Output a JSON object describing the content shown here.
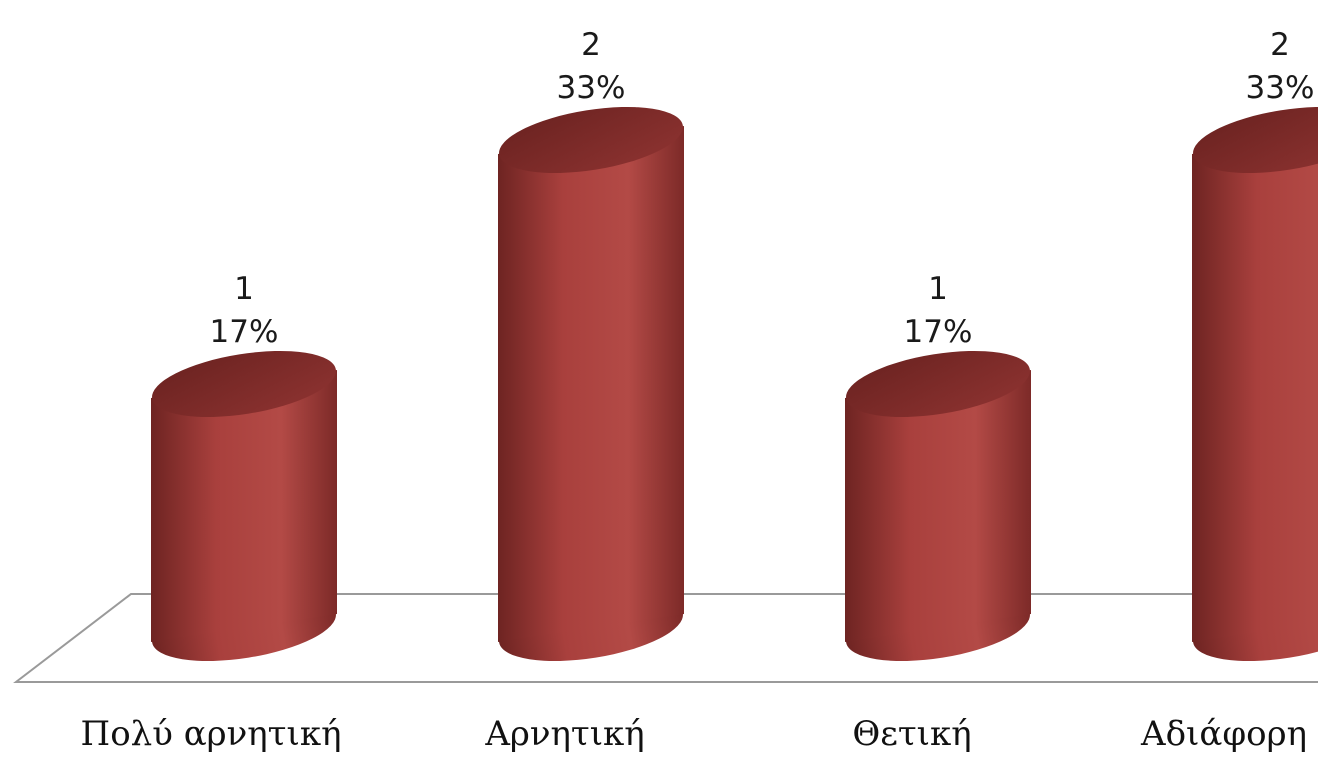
{
  "chart_data": {
    "type": "bar",
    "style": "3d-cylinder",
    "categories": [
      "Πολύ αρνητική",
      "Αρνητική",
      "Θετική",
      "Αδιάφορη"
    ],
    "values": [
      1,
      2,
      1,
      2
    ],
    "percent_labels": [
      "17%",
      "33%",
      "17%",
      "33%"
    ],
    "ylim": [
      0,
      2
    ],
    "grid": false,
    "legend": "none",
    "colors": {
      "bar": "#9e3a38",
      "bar_dark": "#6e2422",
      "bar_light": "#b8504c",
      "top": "#7a2826",
      "floor_line": "#9a9a9a"
    }
  }
}
